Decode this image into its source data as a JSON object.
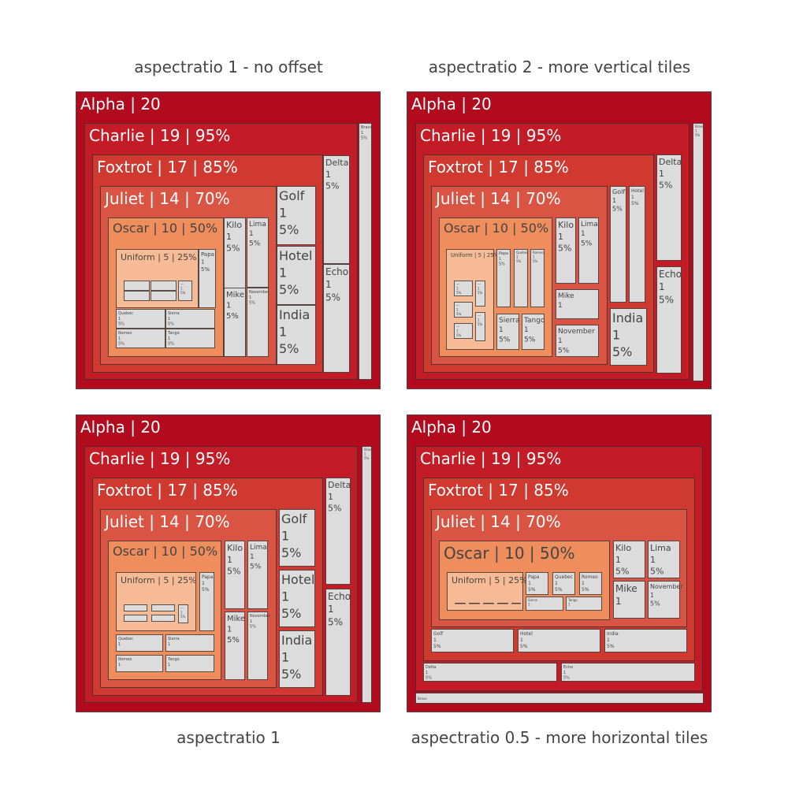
{
  "colors": {
    "alpha": "#b20b1e",
    "charlie": "#c41c27",
    "foxtrot": "#d0392f",
    "juliet": "#da5444",
    "oscar": "#ef8d5c",
    "uniform": "#f6bb95",
    "leaf": "#dcdcdc",
    "line": "#333333",
    "dark_text": "#444444",
    "light_text": "#ffffff"
  },
  "chart_data": [
    {
      "type": "treemap",
      "title": "aspectratio 1 - no offset",
      "branchvalues": "remainder",
      "nodes": [
        {
          "name": "Alpha",
          "parent": "",
          "value": 20,
          "label": "Alpha | 20"
        },
        {
          "name": "Bravo",
          "parent": "Alpha",
          "value": 1,
          "label": "Bravo"
        },
        {
          "name": "Charlie",
          "parent": "Alpha",
          "value": 19,
          "label": "Charlie | 19 | 95%"
        },
        {
          "name": "Delta",
          "parent": "Charlie",
          "value": 1
        },
        {
          "name": "Echo",
          "parent": "Charlie",
          "value": 1
        },
        {
          "name": "Foxtrot",
          "parent": "Charlie",
          "value": 17,
          "label": "Foxtrot | 17 | 85%"
        },
        {
          "name": "Golf",
          "parent": "Foxtrot",
          "value": 1
        },
        {
          "name": "Hotel",
          "parent": "Foxtrot",
          "value": 1
        },
        {
          "name": "India",
          "parent": "Foxtrot",
          "value": 1
        },
        {
          "name": "Juliet",
          "parent": "Foxtrot",
          "value": 14,
          "label": "Juliet | 14 | 70%"
        },
        {
          "name": "Kilo",
          "parent": "Juliet",
          "value": 1
        },
        {
          "name": "Lima",
          "parent": "Juliet",
          "value": 1
        },
        {
          "name": "Mike",
          "parent": "Juliet",
          "value": 1
        },
        {
          "name": "November",
          "parent": "Juliet",
          "value": 1
        },
        {
          "name": "Oscar",
          "parent": "Juliet",
          "value": 10,
          "label": "Oscar | 10 | 50%"
        },
        {
          "name": "Papa",
          "parent": "Oscar",
          "value": 1
        },
        {
          "name": "Quebec",
          "parent": "Oscar",
          "value": 1
        },
        {
          "name": "Romeo",
          "parent": "Oscar",
          "value": 1
        },
        {
          "name": "Sierra",
          "parent": "Oscar",
          "value": 1
        },
        {
          "name": "Tango",
          "parent": "Oscar",
          "value": 1
        },
        {
          "name": "Uniform",
          "parent": "Oscar",
          "value": 5,
          "label": "Uniform | 5 | 25%"
        }
      ],
      "leaf_text": [
        "1",
        "5%"
      ]
    },
    {
      "type": "treemap",
      "title": "aspectratio 2 - more vertical tiles"
    },
    {
      "type": "treemap",
      "title": "aspectratio 1"
    },
    {
      "type": "treemap",
      "title": "aspectratio 0.5 - more horizontal tiles"
    }
  ]
}
